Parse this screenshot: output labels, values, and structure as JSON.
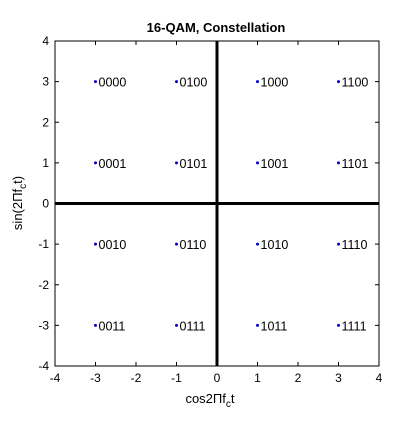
{
  "chart_data": {
    "type": "scatter",
    "title": "16-QAM, Constellation",
    "xlabel_parts": [
      "cos2Πf",
      "c",
      "t"
    ],
    "ylabel_parts": [
      "sin(2Πf",
      "c",
      "t)"
    ],
    "xlim": [
      -4,
      4
    ],
    "ylim": [
      -4,
      4
    ],
    "xticks": [
      -4,
      -3,
      -2,
      -1,
      0,
      1,
      2,
      3,
      4
    ],
    "yticks": [
      -4,
      -3,
      -2,
      -1,
      0,
      1,
      2,
      3,
      4
    ],
    "grid": false,
    "colors": {
      "point": "#0000cc",
      "axes": "#000000",
      "text": "#000000"
    },
    "points": [
      {
        "x": -3,
        "y": 3,
        "label": "0000"
      },
      {
        "x": -1,
        "y": 3,
        "label": "0100"
      },
      {
        "x": 1,
        "y": 3,
        "label": "1000"
      },
      {
        "x": 3,
        "y": 3,
        "label": "1100"
      },
      {
        "x": -3,
        "y": 1,
        "label": "0001"
      },
      {
        "x": -1,
        "y": 1,
        "label": "0101"
      },
      {
        "x": 1,
        "y": 1,
        "label": "1001"
      },
      {
        "x": 3,
        "y": 1,
        "label": "1101"
      },
      {
        "x": -3,
        "y": -1,
        "label": "0010"
      },
      {
        "x": -1,
        "y": -1,
        "label": "0110"
      },
      {
        "x": 1,
        "y": -1,
        "label": "1010"
      },
      {
        "x": 3,
        "y": -1,
        "label": "1110"
      },
      {
        "x": -3,
        "y": -3,
        "label": "0011"
      },
      {
        "x": -1,
        "y": -3,
        "label": "0111"
      },
      {
        "x": 1,
        "y": -3,
        "label": "1011"
      },
      {
        "x": 3,
        "y": -3,
        "label": "1111"
      }
    ]
  }
}
